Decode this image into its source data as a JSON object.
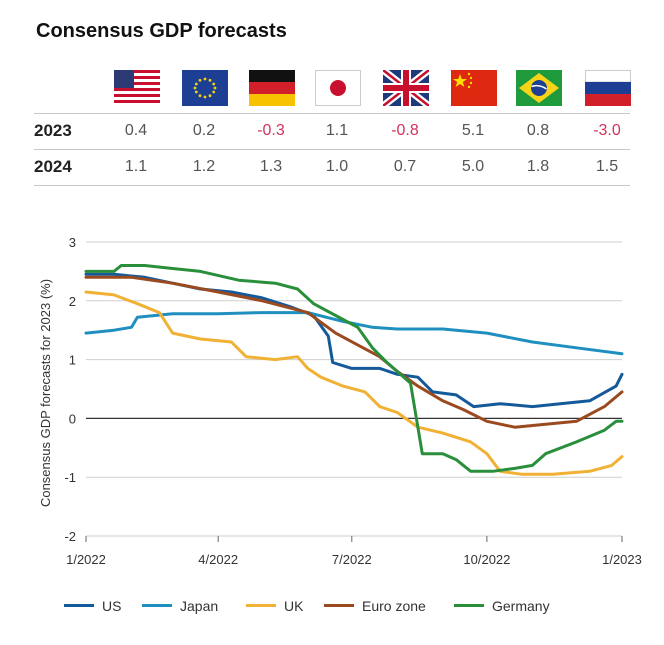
{
  "title": "Consensus GDP forecasts",
  "table": {
    "countries": [
      {
        "icon": "us-flag-icon"
      },
      {
        "icon": "eu-flag-icon"
      },
      {
        "icon": "germany-flag-icon"
      },
      {
        "icon": "japan-flag-icon"
      },
      {
        "icon": "uk-flag-icon"
      },
      {
        "icon": "china-flag-icon"
      },
      {
        "icon": "brazil-flag-icon"
      },
      {
        "icon": "russia-flag-icon"
      }
    ],
    "rows": [
      {
        "label": "2023",
        "values": [
          "0.4",
          "0.2",
          "-0.3",
          "1.1",
          "-0.8",
          "5.1",
          "0.8",
          "-3.0"
        ]
      },
      {
        "label": "2024",
        "values": [
          "1.1",
          "1.2",
          "1.3",
          "1.0",
          "0.7",
          "5.0",
          "1.8",
          "1.5"
        ]
      }
    ],
    "negative_color": "#d1335b"
  },
  "chart_data": {
    "type": "line",
    "ylabel": "Consensus GDP forecasts for 2023 (%)",
    "xlabel": "",
    "ylim": [
      -2,
      3
    ],
    "yticks": [
      "3",
      "2",
      "1",
      "0",
      "-1",
      "-2"
    ],
    "xlim": [
      "2022-01-01",
      "2023-01-01"
    ],
    "xticks": [
      {
        "date": "2022-01-01",
        "label": "1/2022"
      },
      {
        "date": "2022-04-01",
        "label": "4/2022"
      },
      {
        "date": "2022-07-01",
        "label": "7/2022"
      },
      {
        "date": "2022-10-01",
        "label": "10/2022"
      },
      {
        "date": "2023-01-01",
        "label": "1/2023"
      }
    ],
    "grid": "horizontal",
    "legend": "bottom",
    "series": [
      {
        "name": "US",
        "color": "#14599a",
        "points": [
          [
            "2022-01-01",
            2.45
          ],
          [
            "2022-01-20",
            2.45
          ],
          [
            "2022-02-10",
            2.4
          ],
          [
            "2022-03-01",
            2.3
          ],
          [
            "2022-03-20",
            2.2
          ],
          [
            "2022-04-10",
            2.15
          ],
          [
            "2022-05-01",
            2.05
          ],
          [
            "2022-05-20",
            1.9
          ],
          [
            "2022-06-05",
            1.75
          ],
          [
            "2022-06-15",
            1.4
          ],
          [
            "2022-06-18",
            0.95
          ],
          [
            "2022-07-01",
            0.85
          ],
          [
            "2022-07-20",
            0.85
          ],
          [
            "2022-08-01",
            0.75
          ],
          [
            "2022-08-15",
            0.7
          ],
          [
            "2022-08-25",
            0.45
          ],
          [
            "2022-09-10",
            0.4
          ],
          [
            "2022-09-22",
            0.2
          ],
          [
            "2022-10-10",
            0.25
          ],
          [
            "2022-11-01",
            0.2
          ],
          [
            "2022-11-20",
            0.25
          ],
          [
            "2022-12-10",
            0.3
          ],
          [
            "2022-12-28",
            0.55
          ],
          [
            "2023-01-01",
            0.75
          ]
        ]
      },
      {
        "name": "Japan",
        "color": "#1f8fbf",
        "points": [
          [
            "2022-01-01",
            1.45
          ],
          [
            "2022-01-20",
            1.5
          ],
          [
            "2022-02-01",
            1.55
          ],
          [
            "2022-02-05",
            1.72
          ],
          [
            "2022-03-01",
            1.78
          ],
          [
            "2022-04-01",
            1.78
          ],
          [
            "2022-05-01",
            1.8
          ],
          [
            "2022-06-01",
            1.8
          ],
          [
            "2022-06-25",
            1.65
          ],
          [
            "2022-07-15",
            1.55
          ],
          [
            "2022-08-01",
            1.52
          ],
          [
            "2022-09-01",
            1.52
          ],
          [
            "2022-10-01",
            1.45
          ],
          [
            "2022-11-01",
            1.3
          ],
          [
            "2022-12-01",
            1.2
          ],
          [
            "2023-01-01",
            1.1
          ]
        ]
      },
      {
        "name": "UK",
        "color": "#f0b134",
        "points": [
          [
            "2022-01-01",
            2.15
          ],
          [
            "2022-01-20",
            2.1
          ],
          [
            "2022-02-05",
            1.95
          ],
          [
            "2022-02-20",
            1.8
          ],
          [
            "2022-03-01",
            1.45
          ],
          [
            "2022-03-20",
            1.35
          ],
          [
            "2022-04-10",
            1.3
          ],
          [
            "2022-04-20",
            1.05
          ],
          [
            "2022-05-10",
            1.0
          ],
          [
            "2022-05-25",
            1.05
          ],
          [
            "2022-06-01",
            0.85
          ],
          [
            "2022-06-10",
            0.7
          ],
          [
            "2022-06-25",
            0.55
          ],
          [
            "2022-07-10",
            0.45
          ],
          [
            "2022-07-20",
            0.2
          ],
          [
            "2022-08-01",
            0.1
          ],
          [
            "2022-08-15",
            -0.15
          ],
          [
            "2022-09-01",
            -0.25
          ],
          [
            "2022-09-20",
            -0.4
          ],
          [
            "2022-10-01",
            -0.6
          ],
          [
            "2022-10-10",
            -0.9
          ],
          [
            "2022-10-25",
            -0.95
          ],
          [
            "2022-11-15",
            -0.95
          ],
          [
            "2022-12-10",
            -0.9
          ],
          [
            "2022-12-25",
            -0.8
          ],
          [
            "2023-01-01",
            -0.65
          ]
        ]
      },
      {
        "name": "Euro zone",
        "color": "#9a4a1e",
        "points": [
          [
            "2022-01-01",
            2.4
          ],
          [
            "2022-02-01",
            2.4
          ],
          [
            "2022-03-01",
            2.3
          ],
          [
            "2022-04-01",
            2.15
          ],
          [
            "2022-05-01",
            2.0
          ],
          [
            "2022-06-01",
            1.8
          ],
          [
            "2022-06-20",
            1.45
          ],
          [
            "2022-07-05",
            1.25
          ],
          [
            "2022-07-20",
            1.05
          ],
          [
            "2022-08-01",
            0.8
          ],
          [
            "2022-08-15",
            0.55
          ],
          [
            "2022-09-01",
            0.3
          ],
          [
            "2022-09-15",
            0.15
          ],
          [
            "2022-10-01",
            -0.05
          ],
          [
            "2022-10-20",
            -0.15
          ],
          [
            "2022-11-10",
            -0.1
          ],
          [
            "2022-12-01",
            -0.05
          ],
          [
            "2022-12-20",
            0.2
          ],
          [
            "2023-01-01",
            0.45
          ]
        ]
      },
      {
        "name": "Germany",
        "color": "#2a8f3b",
        "points": [
          [
            "2022-01-01",
            2.5
          ],
          [
            "2022-01-20",
            2.5
          ],
          [
            "2022-01-25",
            2.6
          ],
          [
            "2022-02-10",
            2.6
          ],
          [
            "2022-03-01",
            2.55
          ],
          [
            "2022-03-20",
            2.5
          ],
          [
            "2022-04-15",
            2.35
          ],
          [
            "2022-05-10",
            2.3
          ],
          [
            "2022-05-25",
            2.2
          ],
          [
            "2022-06-05",
            1.95
          ],
          [
            "2022-06-20",
            1.75
          ],
          [
            "2022-07-05",
            1.55
          ],
          [
            "2022-07-15",
            1.2
          ],
          [
            "2022-07-25",
            0.95
          ],
          [
            "2022-08-10",
            0.6
          ],
          [
            "2022-08-18",
            -0.6
          ],
          [
            "2022-09-01",
            -0.6
          ],
          [
            "2022-09-10",
            -0.7
          ],
          [
            "2022-09-20",
            -0.9
          ],
          [
            "2022-10-05",
            -0.9
          ],
          [
            "2022-10-20",
            -0.85
          ],
          [
            "2022-11-01",
            -0.8
          ],
          [
            "2022-11-10",
            -0.6
          ],
          [
            "2022-12-01",
            -0.4
          ],
          [
            "2022-12-20",
            -0.2
          ],
          [
            "2022-12-28",
            -0.05
          ],
          [
            "2023-01-01",
            -0.05
          ]
        ]
      }
    ]
  }
}
